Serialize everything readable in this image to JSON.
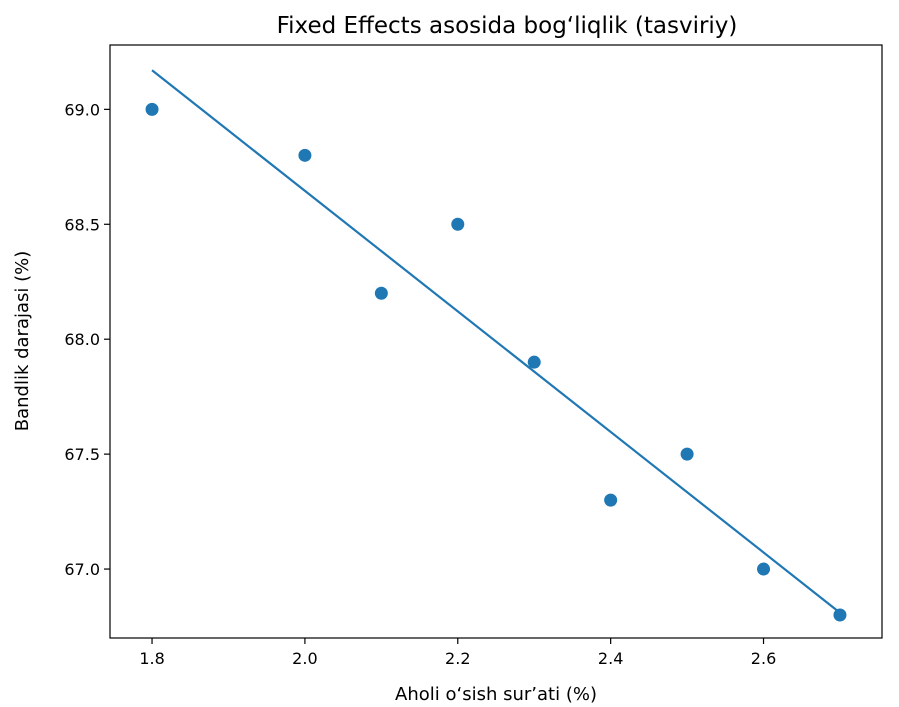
{
  "chart_data": {
    "type": "scatter",
    "title": "Fixed Effects asosida bog‘liqlik (tasviriy)",
    "xlabel": "Aholi o‘sish sur’ati (%)",
    "ylabel": "Bandlik darajasi (%)",
    "xlim": [
      1.745,
      2.755
    ],
    "ylim": [
      66.7,
      69.28
    ],
    "xticks": [
      1.8,
      2.0,
      2.2,
      2.4,
      2.6
    ],
    "xtick_labels": [
      "1.8",
      "2.0",
      "2.2",
      "2.4",
      "2.6"
    ],
    "yticks": [
      67.0,
      67.5,
      68.0,
      68.5,
      69.0
    ],
    "ytick_labels": [
      "67.0",
      "67.5",
      "68.0",
      "68.5",
      "69.0"
    ],
    "grid": false,
    "series": [
      {
        "type": "scatter",
        "color": "#1f77b4",
        "x": [
          1.8,
          2.0,
          2.1,
          2.2,
          2.3,
          2.4,
          2.5,
          2.6,
          2.7
        ],
        "y": [
          69.0,
          68.8,
          68.2,
          68.5,
          67.9,
          67.3,
          67.5,
          67.0,
          66.8
        ]
      },
      {
        "type": "line",
        "color": "#1f77b4",
        "x": [
          1.8,
          2.7
        ],
        "y": [
          69.17,
          66.81
        ]
      }
    ]
  }
}
